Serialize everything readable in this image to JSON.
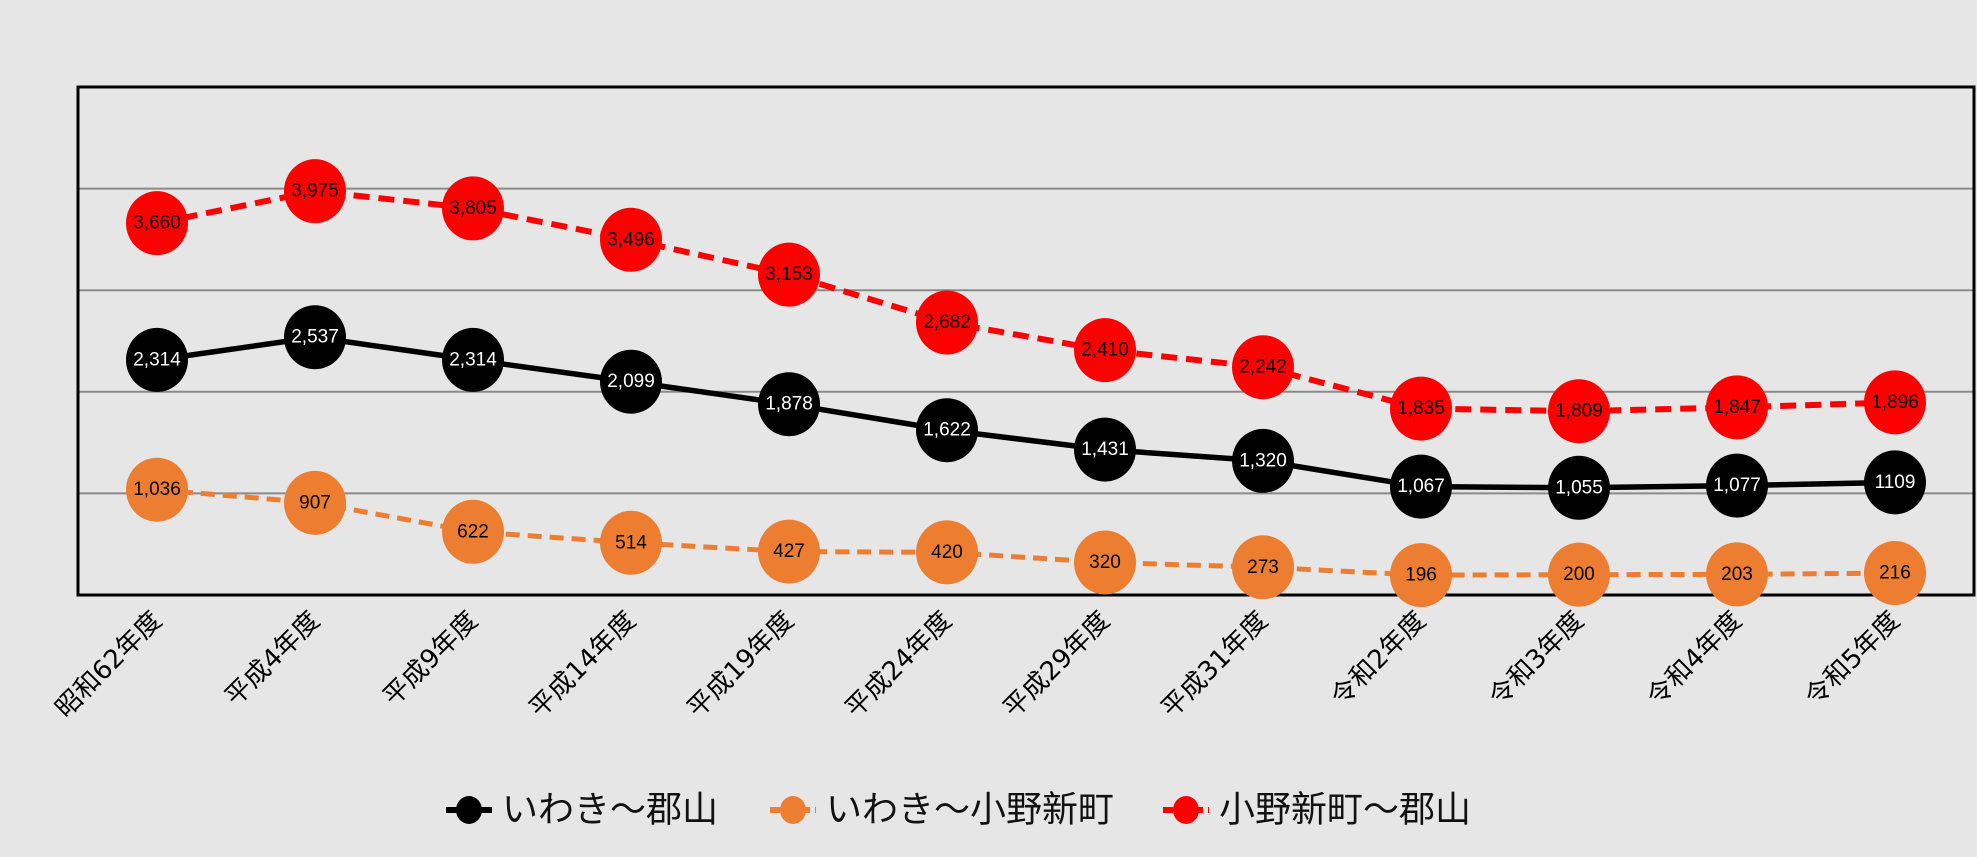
{
  "chart_data": {
    "type": "line",
    "title": "",
    "xlabel": "",
    "ylabel": "",
    "ylim": [
      0,
      5000
    ],
    "yticks_gridlines": [
      1000,
      2000,
      3000,
      4000
    ],
    "grid": true,
    "legend_position": "bottom",
    "categories": [
      "昭和62年度",
      "平成4年度",
      "平成9年度",
      "平成14年度",
      "平成19年度",
      "平成24年度",
      "平成29年度",
      "平成31年度",
      "令和2年度",
      "令和3年度",
      "令和4年度",
      "令和5年度"
    ],
    "series": [
      {
        "name": "いわき〜郡山",
        "color": "#000000",
        "label_color": "#ffffff",
        "dashed": false,
        "values": [
          2314,
          2537,
          2314,
          2099,
          1878,
          1622,
          1431,
          1320,
          1067,
          1055,
          1077,
          1109
        ],
        "labels": [
          "2,314",
          "2,537",
          "2,314",
          "2,099",
          "1,878",
          "1,622",
          "1,431",
          "1,320",
          "1,067",
          "1,055",
          "1,077",
          "1109"
        ]
      },
      {
        "name": "いわき〜小野新町",
        "color": "#ed7d31",
        "label_color": "#000000",
        "dashed": true,
        "values": [
          1036,
          907,
          622,
          514,
          427,
          420,
          320,
          273,
          196,
          200,
          203,
          216
        ],
        "labels": [
          "1,036",
          "907",
          "622",
          "514",
          "427",
          "420",
          "320",
          "273",
          "196",
          "200",
          "203",
          "216"
        ]
      },
      {
        "name": "小野新町〜郡山",
        "color": "#ff0000",
        "label_color": "#000000",
        "dashed": true,
        "values": [
          3660,
          3975,
          3805,
          3496,
          3153,
          2682,
          2410,
          2242,
          1835,
          1809,
          1847,
          1896
        ],
        "labels": [
          "3,660",
          "3,975",
          "3,805",
          "3,496",
          "3,153",
          "2,682",
          "2,410",
          "2,242",
          "1,835",
          "1,809",
          "1,847",
          "1,896"
        ]
      }
    ]
  }
}
